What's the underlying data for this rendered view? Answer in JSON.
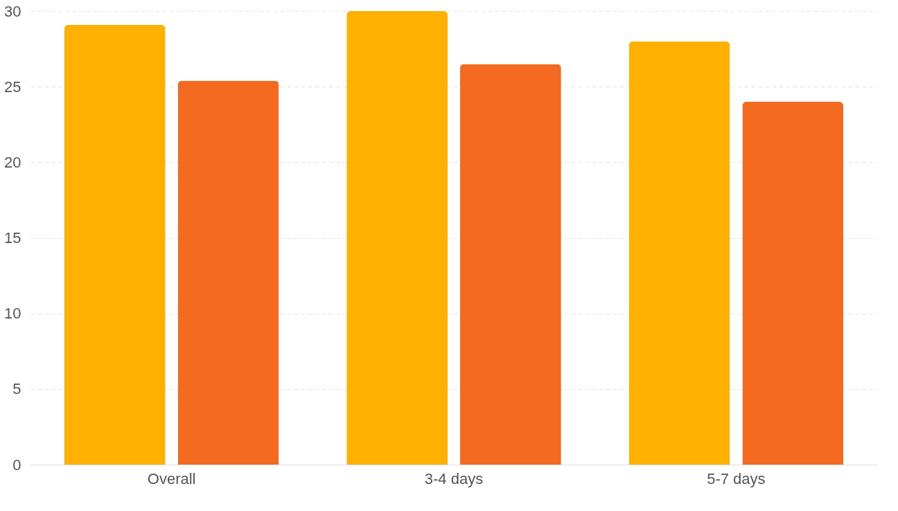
{
  "chart_data": {
    "type": "bar",
    "categories": [
      "Overall",
      "3-4 days",
      "5-7 days"
    ],
    "series": [
      {
        "color": "#ffb000",
        "values": [
          29.1,
          30.0,
          28.0
        ]
      },
      {
        "color": "#f46a21",
        "values": [
          25.4,
          26.5,
          24.0
        ]
      }
    ],
    "ylim": [
      0,
      30
    ],
    "yticks": [
      0,
      5,
      10,
      15,
      20,
      25,
      30
    ],
    "grid": "y"
  }
}
